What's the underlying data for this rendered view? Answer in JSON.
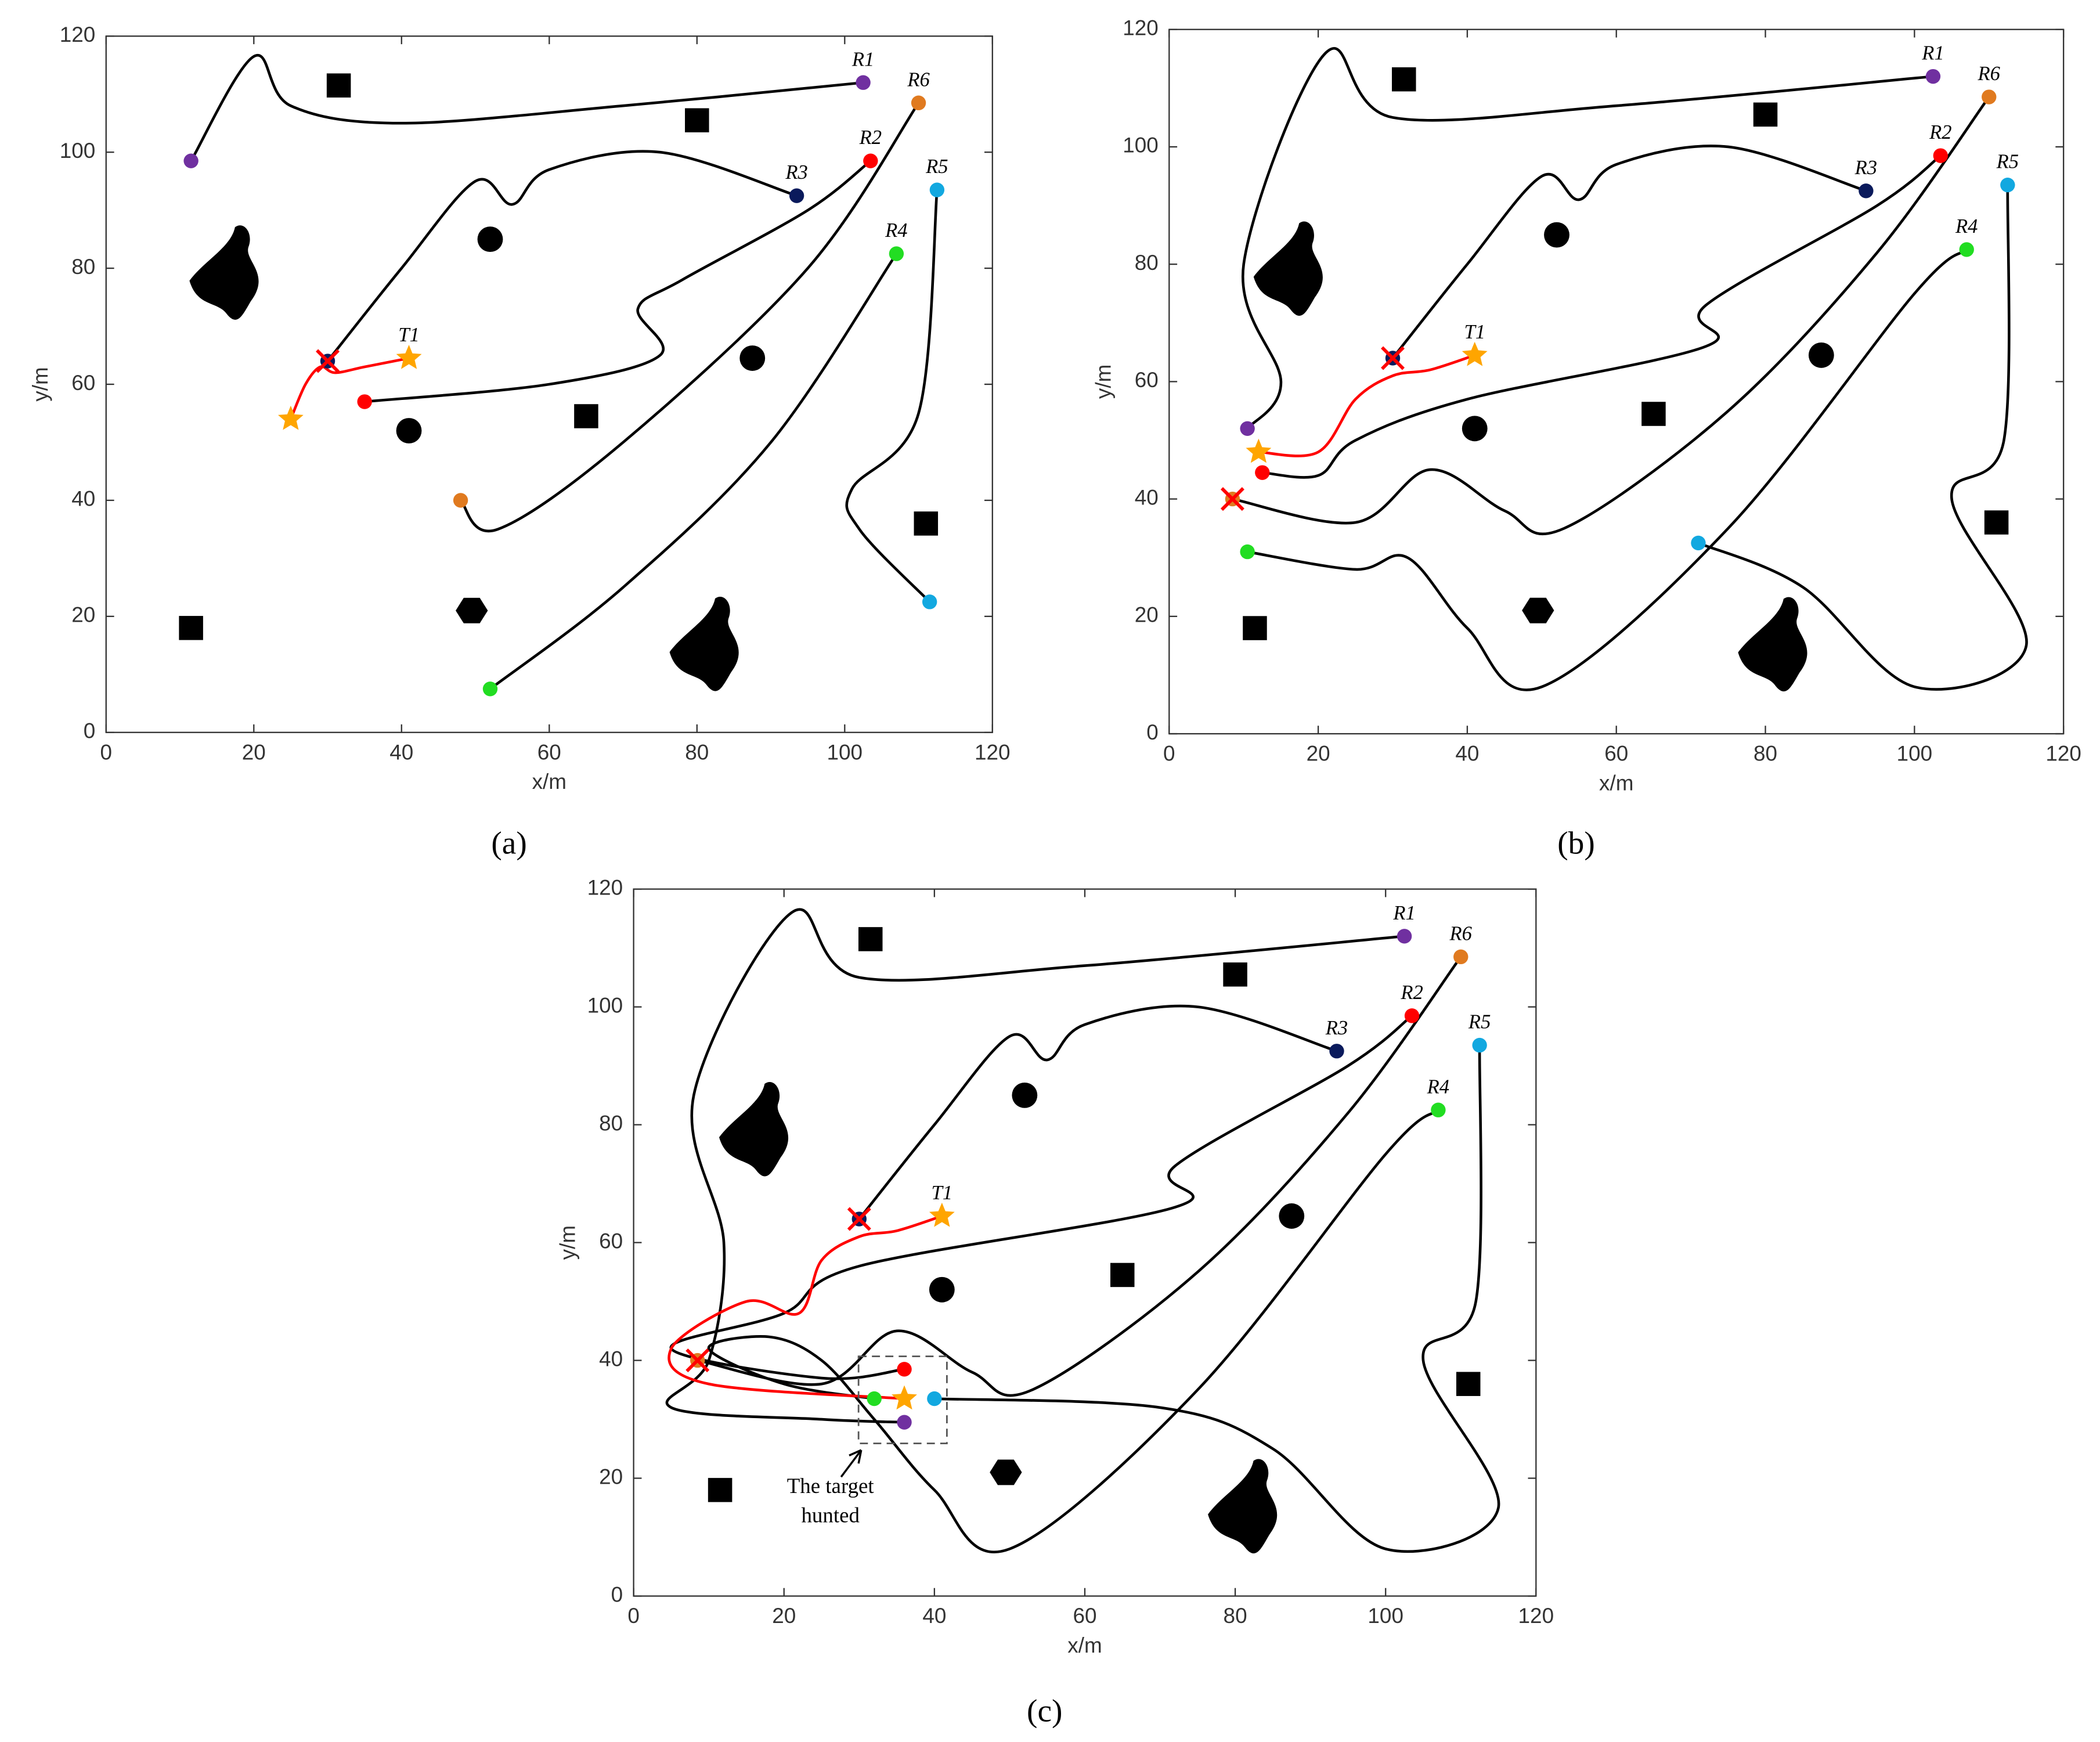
{
  "chart_data": [
    {
      "type": "line",
      "caption": "(a)",
      "xlabel": "x/m",
      "ylabel": "y/m",
      "xlim": [
        0,
        120
      ],
      "ylim": [
        0,
        120
      ],
      "xticks": [
        0,
        20,
        40,
        60,
        80,
        100,
        120
      ],
      "yticks": [
        0,
        20,
        40,
        60,
        80,
        100,
        120
      ],
      "series": [
        {
          "name": "R1",
          "color": "#000000",
          "marker_color": "#7030a0",
          "x": [
            11.5,
            20,
            25,
            40,
            70,
            102.5
          ],
          "y": [
            98.5,
            116.5,
            108,
            105,
            108,
            112
          ]
        },
        {
          "name": "R2",
          "color": "#000000",
          "marker_color": "#ff0000",
          "x": [
            35,
            60,
            75,
            72,
            78,
            95,
            103.5
          ],
          "y": [
            57,
            60,
            65,
            73,
            78,
            90,
            98.5
          ]
        },
        {
          "name": "R3",
          "color": "#000000",
          "marker_color": "#0a1a5c",
          "x": [
            30,
            40,
            50,
            55,
            60,
            75,
            93.5
          ],
          "y": [
            64,
            80,
            95,
            91,
            97,
            100,
            92.5
          ]
        },
        {
          "name": "R4",
          "color": "#000000",
          "marker_color": "#22dd22",
          "x": [
            52,
            70,
            90,
            107
          ],
          "y": [
            7.5,
            25,
            50,
            82.5
          ]
        },
        {
          "name": "R5",
          "color": "#000000",
          "marker_color": "#12a8e0",
          "x": [
            111.5,
            102,
            101,
            110,
            112.5
          ],
          "y": [
            22.5,
            35,
            42,
            55,
            93.5
          ]
        },
        {
          "name": "R6",
          "color": "#000000",
          "marker_color": "#e07a1f",
          "x": [
            48,
            53,
            70,
            95,
            110
          ],
          "y": [
            40,
            35,
            50,
            80,
            108.5
          ]
        },
        {
          "name": "T1",
          "color": "#ff0000",
          "marker_color": "#ffa500",
          "marker": "star",
          "x": [
            25,
            27,
            29,
            31,
            35,
            41
          ],
          "y": [
            54,
            60,
            63,
            62,
            63,
            64.5
          ]
        }
      ],
      "captures": [
        {
          "x": 30,
          "y": 64
        }
      ],
      "capture_color": "#ff0000",
      "obstacles": [
        {
          "shape": "square",
          "x": 31.5,
          "y": 111.5
        },
        {
          "shape": "square",
          "x": 80,
          "y": 105.5
        },
        {
          "shape": "square",
          "x": 65,
          "y": 54.5
        },
        {
          "shape": "square",
          "x": 111,
          "y": 36
        },
        {
          "shape": "square",
          "x": 11.5,
          "y": 18
        },
        {
          "shape": "circle",
          "x": 52,
          "y": 85
        },
        {
          "shape": "circle",
          "x": 41,
          "y": 52
        },
        {
          "shape": "circle",
          "x": 87.5,
          "y": 64.5
        },
        {
          "shape": "hexagon",
          "x": 49.5,
          "y": 21
        },
        {
          "shape": "blob",
          "x": 16,
          "y": 79
        },
        {
          "shape": "blob",
          "x": 81,
          "y": 15
        }
      ]
    },
    {
      "type": "line",
      "caption": "(b)",
      "xlabel": "x/m",
      "ylabel": "y/m",
      "xlim": [
        0,
        120
      ],
      "ylim": [
        0,
        120
      ],
      "xticks": [
        0,
        20,
        40,
        60,
        80,
        100,
        120
      ],
      "yticks": [
        0,
        20,
        40,
        60,
        80,
        100,
        120
      ],
      "series": [
        {
          "name": "R1",
          "color": "#000000",
          "marker_color": "#7030a0",
          "x": [
            10.5,
            15,
            10,
            21,
            30,
            60,
            102.5
          ],
          "y": [
            52,
            60,
            80,
            116,
            105,
            107,
            112
          ]
        },
        {
          "name": "R2",
          "color": "#000000",
          "marker_color": "#ff0000",
          "x": [
            12.5,
            20,
            25,
            40,
            72,
            72,
            95,
            103.5
          ],
          "y": [
            44.5,
            44,
            50,
            57,
            66,
            73,
            90,
            98.5
          ]
        },
        {
          "name": "R3",
          "color": "#000000",
          "marker_color": "#0a1a5c",
          "x": [
            30,
            40,
            50,
            55,
            60,
            75,
            93.5
          ],
          "y": [
            64,
            80,
            95,
            91,
            97,
            100,
            92.5
          ]
        },
        {
          "name": "R4",
          "color": "#000000",
          "marker_color": "#22dd22",
          "x": [
            10.5,
            25,
            32,
            40,
            50,
            75,
            100,
            107
          ],
          "y": [
            31,
            28,
            30,
            18,
            8,
            35,
            75,
            82.5
          ]
        },
        {
          "name": "R5",
          "color": "#000000",
          "marker_color": "#12a8e0",
          "x": [
            71,
            85,
            100,
            115,
            105,
            112,
            112.5
          ],
          "y": [
            32.5,
            25,
            8,
            15,
            40,
            50,
            93.5
          ]
        },
        {
          "name": "R6",
          "color": "#000000",
          "marker_color": "#e07a1f",
          "x": [
            8.5,
            25,
            35,
            45,
            53,
            75,
            95,
            110
          ],
          "y": [
            40,
            36,
            45,
            38,
            35,
            55,
            82,
            108.5
          ]
        },
        {
          "name": "T1",
          "color": "#ff0000",
          "marker_color": "#ffa500",
          "marker": "star",
          "x": [
            12,
            20,
            25,
            30,
            35,
            41
          ],
          "y": [
            48,
            48,
            57,
            61,
            62,
            64.5
          ]
        }
      ],
      "captures": [
        {
          "x": 30,
          "y": 64
        },
        {
          "x": 8.5,
          "y": 40
        }
      ],
      "capture_color": "#ff0000",
      "obstacles": [
        {
          "shape": "square",
          "x": 31.5,
          "y": 111.5
        },
        {
          "shape": "square",
          "x": 80,
          "y": 105.5
        },
        {
          "shape": "square",
          "x": 65,
          "y": 54.5
        },
        {
          "shape": "square",
          "x": 111,
          "y": 36
        },
        {
          "shape": "square",
          "x": 11.5,
          "y": 18
        },
        {
          "shape": "circle",
          "x": 52,
          "y": 85
        },
        {
          "shape": "circle",
          "x": 41,
          "y": 52
        },
        {
          "shape": "circle",
          "x": 87.5,
          "y": 64.5
        },
        {
          "shape": "hexagon",
          "x": 49.5,
          "y": 21
        },
        {
          "shape": "blob",
          "x": 16,
          "y": 79
        },
        {
          "shape": "blob",
          "x": 81,
          "y": 15
        }
      ]
    },
    {
      "type": "line",
      "caption": "(c)",
      "xlabel": "x/m",
      "ylabel": "y/m",
      "annotation": "The target hunted",
      "xlim": [
        0,
        120
      ],
      "ylim": [
        0,
        120
      ],
      "xticks": [
        0,
        20,
        40,
        60,
        80,
        100,
        120
      ],
      "yticks": [
        0,
        20,
        40,
        60,
        80,
        100,
        120
      ],
      "series": [
        {
          "name": "R1",
          "color": "#000000",
          "marker_color": "#7030a0",
          "x": [
            36,
            25,
            5,
            10,
            12,
            8,
            21,
            30,
            60,
            102.5
          ],
          "y": [
            29.5,
            30,
            32,
            40,
            60,
            85,
            116,
            105,
            107,
            112
          ]
        },
        {
          "name": "R2",
          "color": "#000000",
          "marker_color": "#ff0000",
          "x": [
            36,
            25,
            5,
            20,
            30,
            72,
            72,
            95,
            103.5
          ],
          "y": [
            38.5,
            37,
            42,
            48,
            56,
            66,
            73,
            90,
            98.5
          ]
        },
        {
          "name": "R3",
          "color": "#000000",
          "marker_color": "#0a1a5c",
          "x": [
            30,
            40,
            50,
            55,
            60,
            75,
            93.5
          ],
          "y": [
            64,
            80,
            95,
            91,
            97,
            100,
            92.5
          ]
        },
        {
          "name": "R4",
          "color": "#000000",
          "marker_color": "#22dd22",
          "x": [
            32,
            20,
            10,
            18,
            25,
            32,
            40,
            50,
            75,
            100,
            107
          ],
          "y": [
            33.5,
            36,
            42,
            44,
            40,
            30,
            18,
            8,
            35,
            75,
            82.5
          ]
        },
        {
          "name": "R5",
          "color": "#000000",
          "marker_color": "#12a8e0",
          "x": [
            40,
            70,
            85,
            100,
            115,
            105,
            112,
            112.5
          ],
          "y": [
            33.5,
            32,
            25,
            8,
            15,
            40,
            50,
            93.5
          ]
        },
        {
          "name": "R6",
          "color": "#000000",
          "marker_color": "#e07a1f",
          "x": [
            8.5,
            25,
            35,
            45,
            53,
            75,
            95,
            110
          ],
          "y": [
            40,
            36,
            45,
            38,
            35,
            55,
            82,
            108.5
          ]
        },
        {
          "name": "T1",
          "color": "#ff0000",
          "marker_color": "#ffa500",
          "marker": "star",
          "x": [
            36,
            10,
            5,
            15,
            22,
            25,
            30,
            35,
            41
          ],
          "y": [
            33.5,
            36,
            42,
            50,
            48,
            57,
            61,
            62,
            64.5
          ]
        }
      ],
      "captures": [
        {
          "x": 30,
          "y": 64
        },
        {
          "x": 8.5,
          "y": 40
        }
      ],
      "capture_color": "#ff0000",
      "obstacles": [
        {
          "shape": "square",
          "x": 31.5,
          "y": 111.5
        },
        {
          "shape": "square",
          "x": 80,
          "y": 105.5
        },
        {
          "shape": "square",
          "x": 65,
          "y": 54.5
        },
        {
          "shape": "square",
          "x": 111,
          "y": 36
        },
        {
          "shape": "square",
          "x": 11.5,
          "y": 18
        },
        {
          "shape": "circle",
          "x": 52,
          "y": 85
        },
        {
          "shape": "circle",
          "x": 41,
          "y": 52
        },
        {
          "shape": "circle",
          "x": 87.5,
          "y": 64.5
        },
        {
          "shape": "hexagon",
          "x": 49.5,
          "y": 21
        },
        {
          "shape": "blob",
          "x": 16,
          "y": 79
        },
        {
          "shape": "blob",
          "x": 81,
          "y": 15
        }
      ]
    }
  ]
}
